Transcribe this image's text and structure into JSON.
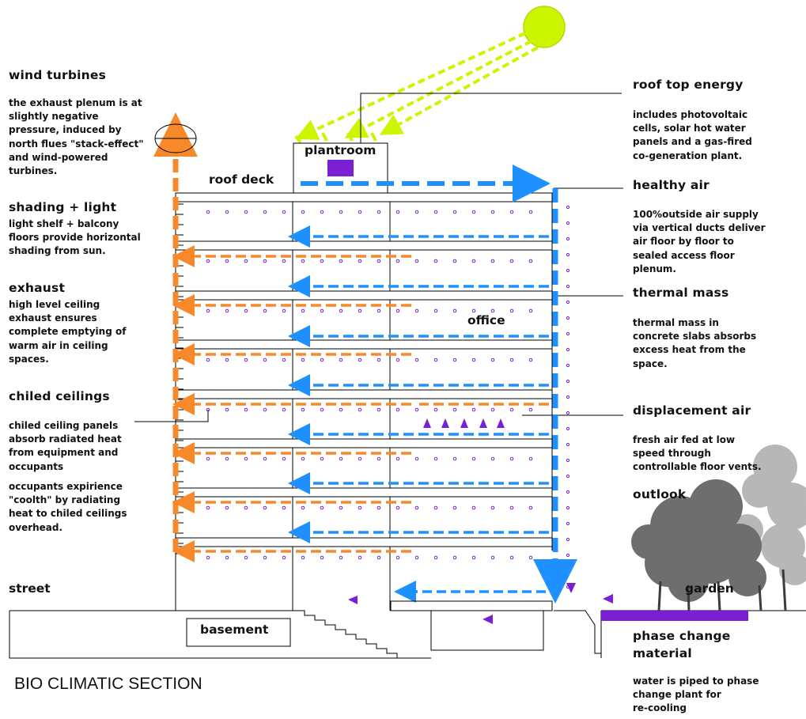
{
  "title": "BIO CLIMATIC SECTION",
  "colors": {
    "exhaust_orange": "#f7892a",
    "supply_blue": "#1e90ff",
    "sun_green": "#ccf500",
    "accent_purple": "#7a1fd4",
    "tree_grey": "#6e6e6e"
  },
  "left_notes": [
    {
      "heading": "wind turbines",
      "body": "the exhaust plenum is at\nslightly negative\npressure, induced by\nnorth flues \"stack-effect\"\nand wind-powered\nturbines."
    },
    {
      "heading": "shading + light",
      "body": "light shelf + balcony\nfloors provide horizontal\nshading from sun."
    },
    {
      "heading": "exhaust",
      "body": "high level ceiling\nexhaust ensures\ncomplete emptying of\nwarm air in ceiling\nspaces."
    },
    {
      "heading": "chiled ceilings",
      "body": "chiled ceiling panels\nabsorb radiated heat\nfrom equipment and\noccupants"
    },
    {
      "heading": "",
      "body": "occupants expirience\n\"coolth\" by radiating\nheat to chiled ceilings\noverhead."
    }
  ],
  "right_notes": [
    {
      "heading": "roof top energy",
      "body": "includes photovoltaic\ncells, solar hot water\npanels and a gas-fired\nco-generation plant."
    },
    {
      "heading": "healthy air",
      "body": "100%outside air supply\nvia vertical ducts deliver\nair floor by floor to\nsealed access floor\nplenum."
    },
    {
      "heading": "thermal mass",
      "body": "thermal mass in\nconcrete slabs absorbs\nexcess heat from the\nspace."
    },
    {
      "heading": "displacement air",
      "body": "fresh air fed at low\nspeed through\ncontrollable floor vents."
    },
    {
      "heading": "outlook",
      "body": ""
    },
    {
      "heading": "phase change\nmaterial",
      "body": "water is piped to phase\nchange plant for\nre-cooling"
    }
  ],
  "labels": {
    "plantroom": "plantroom",
    "roof_deck": "roof deck",
    "office": "office",
    "street": "street",
    "basement": "basement",
    "garden": "garden"
  }
}
